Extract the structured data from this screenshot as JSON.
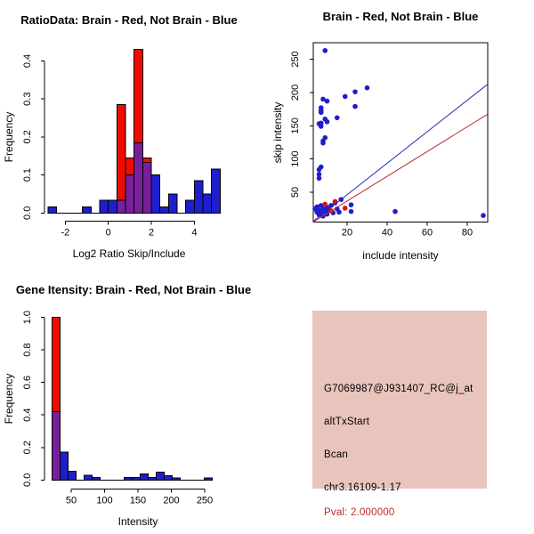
{
  "chart_data": [
    {
      "id": "ratio_histogram",
      "type": "bar",
      "title": "RatioData: Brain - Red, Not Brain - Blue",
      "xlabel": "Log2 Ratio Skip/Include",
      "ylabel": "Frequency",
      "xlim": [
        -3.1,
        5.3
      ],
      "ylim": [
        0,
        0.44
      ],
      "grid": false,
      "legend_position": "none",
      "xticks": [
        {
          "v": -2,
          "label": "-2"
        },
        {
          "v": 0,
          "label": "0"
        },
        {
          "v": 2,
          "label": "2"
        },
        {
          "v": 4,
          "label": "4"
        }
      ],
      "yticks": [
        {
          "v": 0.0,
          "label": "0.0"
        },
        {
          "v": 0.1,
          "label": "0.1"
        },
        {
          "v": 0.2,
          "label": "0.2"
        },
        {
          "v": 0.3,
          "label": "0.3"
        },
        {
          "v": 0.4,
          "label": "0.4"
        }
      ],
      "bin_width": 0.4,
      "series": [
        {
          "name": "not_brain_blue",
          "color": "#1E1ECD",
          "bins": [
            [
              -2.8,
              0.016
            ],
            [
              -1.2,
              0.016
            ],
            [
              -0.4,
              0.033
            ],
            [
              0,
              0.033
            ],
            [
              0.4,
              0.033
            ],
            [
              0.8,
              0.1
            ],
            [
              1.2,
              0.185
            ],
            [
              1.6,
              0.133
            ],
            [
              2.0,
              0.1
            ],
            [
              2.4,
              0.016
            ],
            [
              2.8,
              0.05
            ],
            [
              3.6,
              0.033
            ],
            [
              4.0,
              0.085
            ],
            [
              4.4,
              0.05
            ],
            [
              4.8,
              0.115
            ]
          ]
        },
        {
          "name": "brain_red",
          "color": "#EE0C00",
          "bins": [
            [
              0.4,
              0.285
            ],
            [
              0.8,
              0.145
            ],
            [
              1.2,
              0.43
            ],
            [
              1.6,
              0.145
            ]
          ]
        }
      ],
      "overlap_color": "#78209B"
    },
    {
      "id": "intensity_scatter",
      "type": "scatter",
      "title": "Brain - Red, Not Brain - Blue",
      "xlabel": "include intensity",
      "ylabel": "skip intensity",
      "xlim": [
        2,
        93
      ],
      "ylim": [
        3,
        277
      ],
      "grid": false,
      "legend_position": "none",
      "xticks": [
        {
          "v": 20,
          "label": "20"
        },
        {
          "v": 40,
          "label": "40"
        },
        {
          "v": 60,
          "label": "60"
        },
        {
          "v": 80,
          "label": "80"
        }
      ],
      "yticks": [
        {
          "v": 50,
          "label": "50"
        },
        {
          "v": 100,
          "label": "100"
        },
        {
          "v": 150,
          "label": "150"
        },
        {
          "v": 200,
          "label": "200"
        },
        {
          "v": 250,
          "label": "250"
        }
      ],
      "series": [
        {
          "name": "not_brain_blue",
          "color": "#1E1ECD",
          "points": [
            [
              9,
              263
            ],
            [
              30,
              207
            ],
            [
              24,
              201
            ],
            [
              19,
              194
            ],
            [
              24,
              179
            ],
            [
              8,
              190
            ],
            [
              10,
              187
            ],
            [
              7,
              177
            ],
            [
              7,
              173
            ],
            [
              7,
              170
            ],
            [
              9,
              160
            ],
            [
              15,
              162
            ],
            [
              6,
              153
            ],
            [
              7,
              154
            ],
            [
              10,
              156
            ],
            [
              7,
              149
            ],
            [
              9,
              132
            ],
            [
              8,
              127
            ],
            [
              8,
              124
            ],
            [
              7,
              88
            ],
            [
              6,
              84
            ],
            [
              6,
              77
            ],
            [
              6,
              71
            ],
            [
              4,
              25
            ],
            [
              5,
              20
            ],
            [
              5,
              28
            ],
            [
              6,
              16
            ],
            [
              6,
              23
            ],
            [
              7,
              30
            ],
            [
              7,
              18
            ],
            [
              8,
              25
            ],
            [
              8,
              14
            ],
            [
              9,
              21
            ],
            [
              10,
              27
            ],
            [
              10,
              17
            ],
            [
              11,
              23
            ],
            [
              12,
              30
            ],
            [
              13,
              19
            ],
            [
              14,
              34
            ],
            [
              15,
              25
            ],
            [
              16,
              20
            ],
            [
              17,
              39
            ],
            [
              22,
              31
            ],
            [
              22,
              21
            ],
            [
              44,
              21
            ],
            [
              88,
              15
            ]
          ]
        },
        {
          "name": "brain_red",
          "color": "#E01010",
          "points": [
            [
              9,
              32
            ],
            [
              12,
              22
            ],
            [
              14,
              36
            ],
            [
              19,
              26
            ]
          ]
        }
      ],
      "lines": [
        {
          "name": "blue",
          "color": "#2A2AB2",
          "x1": 3,
          "y1": 6,
          "x2": 90,
          "y2": 212
        },
        {
          "name": "red",
          "color": "#C03030",
          "x1": 3,
          "y1": 5,
          "x2": 90,
          "y2": 167
        }
      ]
    },
    {
      "id": "gene_intensity_histogram",
      "type": "bar",
      "title": "Gene Itensity: Brain - Red, Not Brain - Blue",
      "xlabel": "Intensity",
      "ylabel": "Frequency",
      "xlim": [
        10,
        275
      ],
      "ylim": [
        0,
        1.0
      ],
      "grid": false,
      "legend_position": "none",
      "xticks": [
        {
          "v": 50,
          "label": "50"
        },
        {
          "v": 100,
          "label": "100"
        },
        {
          "v": 150,
          "label": "150"
        },
        {
          "v": 200,
          "label": "200"
        },
        {
          "v": 250,
          "label": "250"
        }
      ],
      "yticks": [
        {
          "v": 0.0,
          "label": "0.0"
        },
        {
          "v": 0.2,
          "label": "0.2"
        },
        {
          "v": 0.4,
          "label": "0.4"
        },
        {
          "v": 0.6,
          "label": "0.6"
        },
        {
          "v": 0.8,
          "label": "0.8"
        },
        {
          "v": 1.0,
          "label": "1.0"
        }
      ],
      "bin_width": 12,
      "series": [
        {
          "name": "not_brain_blue",
          "color": "#1E1ECD",
          "bins": [
            [
              21,
              0.42
            ],
            [
              33,
              0.17
            ],
            [
              45,
              0.055
            ],
            [
              69,
              0.03
            ],
            [
              81,
              0.015
            ],
            [
              129,
              0.016
            ],
            [
              141,
              0.016
            ],
            [
              153,
              0.036
            ],
            [
              165,
              0.016
            ],
            [
              177,
              0.049
            ],
            [
              189,
              0.027
            ],
            [
              201,
              0.012
            ],
            [
              249,
              0.012
            ]
          ]
        },
        {
          "name": "brain_red",
          "color": "#EE0C00",
          "bins": [
            [
              21,
              1.0
            ]
          ]
        }
      ],
      "overlap_color": "#78209B"
    }
  ],
  "info_panel": {
    "bg_color": "#E9C4BC",
    "lines": [
      {
        "name": "probe_id",
        "text": "G7069987@J931407_RC@j_at",
        "color": "#000000"
      },
      {
        "name": "event_type",
        "text": "altTxStart",
        "color": "#000000"
      },
      {
        "name": "gene_symbol",
        "text": "Bcan",
        "color": "#000000"
      },
      {
        "name": "location",
        "text": "chr3.16109-1.17",
        "color": "#000000"
      },
      {
        "name": "pval",
        "text": "Pval: 2.000000",
        "color": "#C52828"
      }
    ]
  }
}
